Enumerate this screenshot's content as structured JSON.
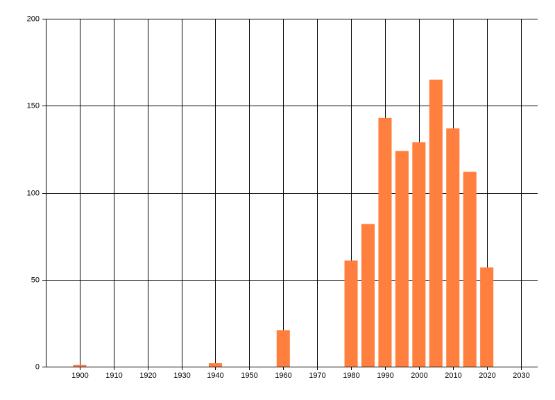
{
  "chart_data": {
    "type": "bar",
    "x": [
      1900,
      1940,
      1960,
      1980,
      1985,
      1990,
      1995,
      2000,
      2005,
      2010,
      2015,
      2020
    ],
    "values": [
      1,
      2,
      21,
      61,
      82,
      143,
      124,
      129,
      165,
      137,
      112,
      57
    ],
    "color": "#ff7f3f",
    "xlim": [
      1890,
      2035
    ],
    "xticks": [
      1900,
      1910,
      1920,
      1930,
      1940,
      1950,
      1960,
      1970,
      1980,
      1990,
      2000,
      2010,
      2020,
      2030
    ],
    "ylim": [
      0,
      200
    ],
    "yticks": [
      0,
      50,
      100,
      150,
      200
    ],
    "grid": true
  }
}
